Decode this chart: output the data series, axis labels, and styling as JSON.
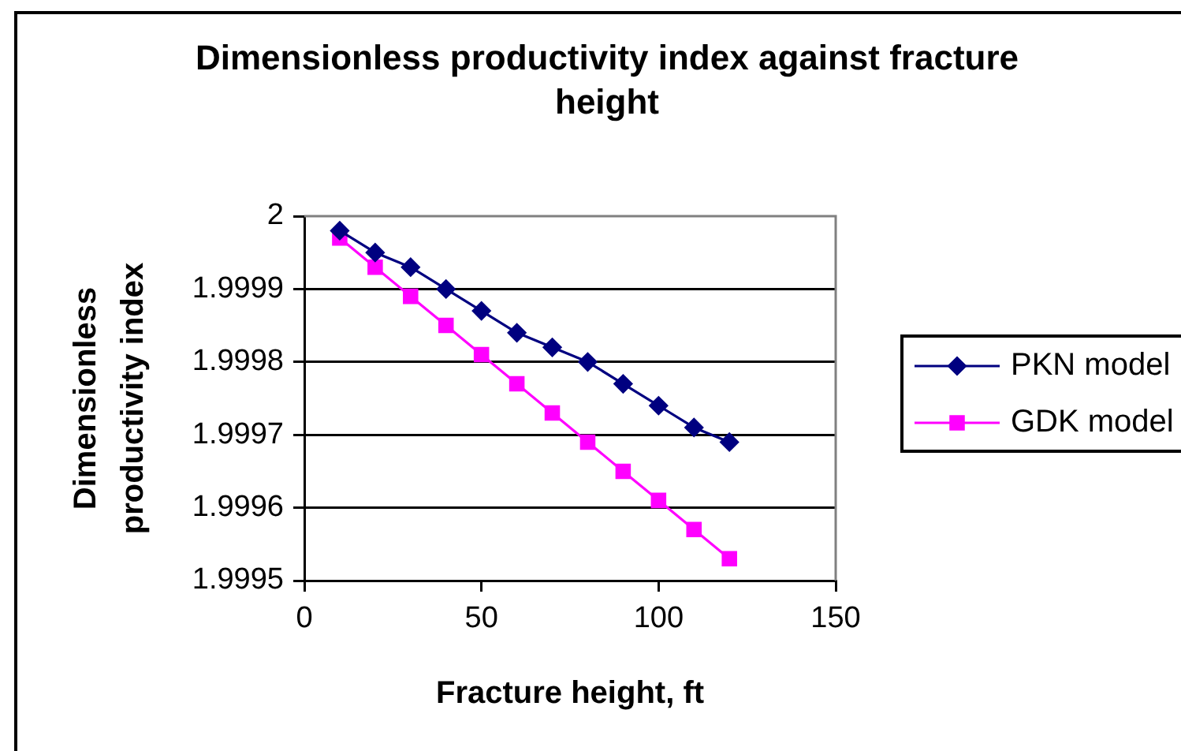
{
  "chart_data": {
    "type": "line",
    "title": "Dimensionless productivity index against fracture height",
    "xlabel": "Fracture height, ft",
    "ylabel": "Dimensionless productivity index",
    "x": [
      10,
      20,
      30,
      40,
      50,
      60,
      70,
      80,
      90,
      100,
      110,
      120
    ],
    "series": [
      {
        "name": "PKN model",
        "color": "#000080",
        "marker": "diamond",
        "values": [
          1.99998,
          1.99995,
          1.99993,
          1.9999,
          1.99987,
          1.99984,
          1.99982,
          1.9998,
          1.99977,
          1.99974,
          1.99971,
          1.99969
        ]
      },
      {
        "name": "GDK model",
        "color": "#ff00ff",
        "marker": "square",
        "values": [
          1.99997,
          1.99993,
          1.99989,
          1.99985,
          1.99981,
          1.99977,
          1.99973,
          1.99969,
          1.99965,
          1.99961,
          1.99957,
          1.99953
        ]
      }
    ],
    "xlim": [
      0,
      150
    ],
    "xticks": [
      0,
      50,
      100,
      150
    ],
    "ylim": [
      1.9995,
      2
    ],
    "yticks": [
      1.9995,
      1.9996,
      1.9997,
      1.9998,
      1.9999,
      2
    ],
    "grid": "y",
    "legend": "right",
    "line_style": "solid"
  }
}
